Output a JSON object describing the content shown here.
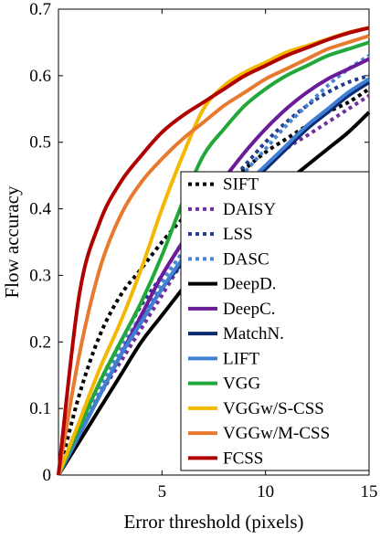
{
  "chart_data": {
    "type": "line",
    "xlabel": "Error threshold (pixels)",
    "ylabel": "Flow accuracy",
    "xlim": [
      0,
      15
    ],
    "ylim": [
      0,
      0.7
    ],
    "x_ticks": [
      "5",
      "10",
      "15"
    ],
    "y_ticks": [
      "0",
      "0.1",
      "0.2",
      "0.3",
      "0.4",
      "0.5",
      "0.6",
      "0.7"
    ],
    "grid": false,
    "legend_position": "lower-right",
    "x": [
      0,
      1,
      2,
      3,
      4,
      5,
      6,
      7,
      8,
      9,
      10,
      11,
      12,
      13,
      14,
      15
    ],
    "series": [
      {
        "name": "SIFT",
        "color": "#000000",
        "dash": "dotted",
        "values": [
          0,
          0.12,
          0.21,
          0.27,
          0.31,
          0.35,
          0.385,
          0.41,
          0.435,
          0.46,
          0.485,
          0.505,
          0.525,
          0.545,
          0.56,
          0.58
        ]
      },
      {
        "name": "DAISY",
        "color": "#7030a0",
        "dash": "dotted",
        "values": [
          0,
          0.06,
          0.12,
          0.17,
          0.22,
          0.27,
          0.32,
          0.36,
          0.4,
          0.43,
          0.46,
          0.49,
          0.51,
          0.53,
          0.55,
          0.57
        ]
      },
      {
        "name": "LSS",
        "color": "#1f3d8c",
        "dash": "dotted",
        "values": [
          0,
          0.07,
          0.14,
          0.2,
          0.255,
          0.3,
          0.35,
          0.39,
          0.43,
          0.465,
          0.5,
          0.53,
          0.555,
          0.575,
          0.59,
          0.6
        ]
      },
      {
        "name": "DASC",
        "color": "#4a86d0",
        "dash": "dotted",
        "values": [
          0,
          0.06,
          0.13,
          0.19,
          0.24,
          0.29,
          0.335,
          0.375,
          0.415,
          0.455,
          0.49,
          0.525,
          0.555,
          0.585,
          0.61,
          0.63
        ]
      },
      {
        "name": "DeepD.",
        "color": "#000000",
        "dash": "solid",
        "values": [
          0,
          0.05,
          0.1,
          0.15,
          0.2,
          0.24,
          0.28,
          0.32,
          0.355,
          0.385,
          0.415,
          0.44,
          0.465,
          0.49,
          0.515,
          0.545
        ]
      },
      {
        "name": "DeepC.",
        "color": "#6a1b9a",
        "dash": "solid",
        "values": [
          0,
          0.06,
          0.12,
          0.18,
          0.24,
          0.3,
          0.35,
          0.4,
          0.445,
          0.485,
          0.52,
          0.55,
          0.575,
          0.595,
          0.61,
          0.625
        ]
      },
      {
        "name": "MatchN.",
        "color": "#0b2a6f",
        "dash": "solid",
        "values": [
          0,
          0.06,
          0.12,
          0.18,
          0.23,
          0.28,
          0.32,
          0.36,
          0.395,
          0.43,
          0.46,
          0.49,
          0.52,
          0.545,
          0.57,
          0.59
        ]
      },
      {
        "name": "LIFT",
        "color": "#3f7fd4",
        "dash": "solid",
        "values": [
          0,
          0.06,
          0.12,
          0.18,
          0.23,
          0.28,
          0.325,
          0.365,
          0.4,
          0.435,
          0.465,
          0.495,
          0.525,
          0.55,
          0.575,
          0.595
        ]
      },
      {
        "name": "VGG",
        "color": "#22a83a",
        "dash": "solid",
        "values": [
          0,
          0.07,
          0.14,
          0.2,
          0.26,
          0.33,
          0.41,
          0.48,
          0.52,
          0.555,
          0.58,
          0.6,
          0.615,
          0.63,
          0.64,
          0.65
        ]
      },
      {
        "name": "VGGw/S-CSS",
        "color": "#f5b800",
        "dash": "solid",
        "values": [
          0,
          0.08,
          0.16,
          0.23,
          0.31,
          0.4,
          0.48,
          0.55,
          0.585,
          0.605,
          0.62,
          0.635,
          0.645,
          0.655,
          0.665,
          0.672
        ]
      },
      {
        "name": "VGGw/M-CSS",
        "color": "#e87a30",
        "dash": "solid",
        "values": [
          0,
          0.18,
          0.31,
          0.39,
          0.44,
          0.475,
          0.505,
          0.53,
          0.555,
          0.575,
          0.595,
          0.61,
          0.625,
          0.64,
          0.65,
          0.66
        ]
      },
      {
        "name": "FCSS",
        "color": "#b00000",
        "dash": "solid",
        "values": [
          0,
          0.27,
          0.38,
          0.44,
          0.48,
          0.515,
          0.54,
          0.56,
          0.58,
          0.6,
          0.615,
          0.63,
          0.642,
          0.654,
          0.664,
          0.672
        ]
      }
    ]
  }
}
